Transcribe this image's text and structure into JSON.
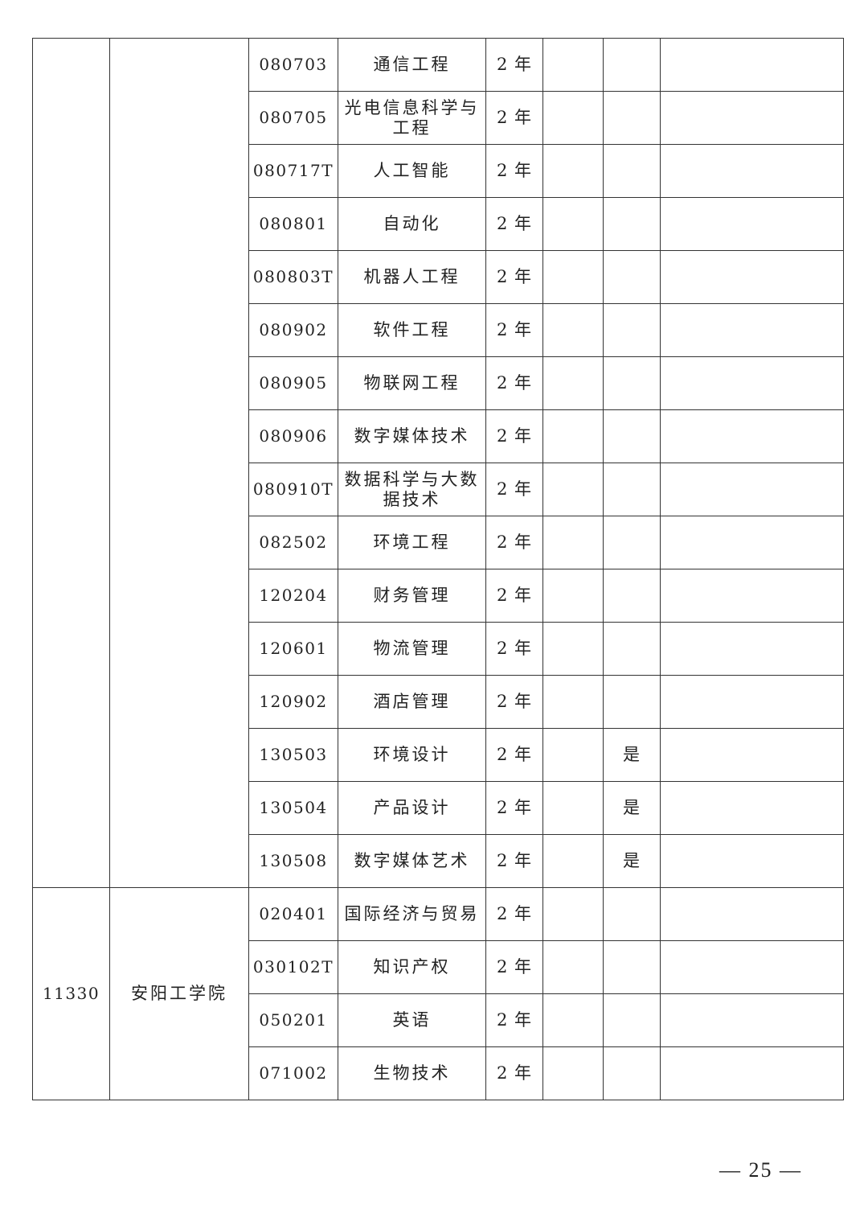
{
  "groups": [
    {
      "school_code": "",
      "school_name": "",
      "rows": [
        {
          "code": "080703",
          "major": "通信工程",
          "years": "2 年",
          "col6": "",
          "col7": "",
          "col8": ""
        },
        {
          "code": "080705",
          "major": "光电信息科学与工程",
          "years": "2 年",
          "col6": "",
          "col7": "",
          "col8": ""
        },
        {
          "code": "080717T",
          "major": "人工智能",
          "years": "2 年",
          "col6": "",
          "col7": "",
          "col8": ""
        },
        {
          "code": "080801",
          "major": "自动化",
          "years": "2 年",
          "col6": "",
          "col7": "",
          "col8": ""
        },
        {
          "code": "080803T",
          "major": "机器人工程",
          "years": "2 年",
          "col6": "",
          "col7": "",
          "col8": ""
        },
        {
          "code": "080902",
          "major": "软件工程",
          "years": "2 年",
          "col6": "",
          "col7": "",
          "col8": ""
        },
        {
          "code": "080905",
          "major": "物联网工程",
          "years": "2 年",
          "col6": "",
          "col7": "",
          "col8": ""
        },
        {
          "code": "080906",
          "major": "数字媒体技术",
          "years": "2 年",
          "col6": "",
          "col7": "",
          "col8": ""
        },
        {
          "code": "080910T",
          "major": "数据科学与大数据技术",
          "years": "2 年",
          "col6": "",
          "col7": "",
          "col8": ""
        },
        {
          "code": "082502",
          "major": "环境工程",
          "years": "2 年",
          "col6": "",
          "col7": "",
          "col8": ""
        },
        {
          "code": "120204",
          "major": "财务管理",
          "years": "2 年",
          "col6": "",
          "col7": "",
          "col8": ""
        },
        {
          "code": "120601",
          "major": "物流管理",
          "years": "2 年",
          "col6": "",
          "col7": "",
          "col8": ""
        },
        {
          "code": "120902",
          "major": "酒店管理",
          "years": "2 年",
          "col6": "",
          "col7": "",
          "col8": ""
        },
        {
          "code": "130503",
          "major": "环境设计",
          "years": "2 年",
          "col6": "",
          "col7": "是",
          "col8": ""
        },
        {
          "code": "130504",
          "major": "产品设计",
          "years": "2 年",
          "col6": "",
          "col7": "是",
          "col8": ""
        },
        {
          "code": "130508",
          "major": "数字媒体艺术",
          "years": "2 年",
          "col6": "",
          "col7": "是",
          "col8": ""
        }
      ]
    },
    {
      "school_code": "11330",
      "school_name": "安阳工学院",
      "rows": [
        {
          "code": "020401",
          "major": "国际经济与贸易",
          "years": "2 年",
          "col6": "",
          "col7": "",
          "col8": ""
        },
        {
          "code": "030102T",
          "major": "知识产权",
          "years": "2 年",
          "col6": "",
          "col7": "",
          "col8": ""
        },
        {
          "code": "050201",
          "major": "英语",
          "years": "2 年",
          "col6": "",
          "col7": "",
          "col8": ""
        },
        {
          "code": "071002",
          "major": "生物技术",
          "years": "2 年",
          "col6": "",
          "col7": "",
          "col8": ""
        }
      ]
    }
  ],
  "page_number": "— 25 —"
}
